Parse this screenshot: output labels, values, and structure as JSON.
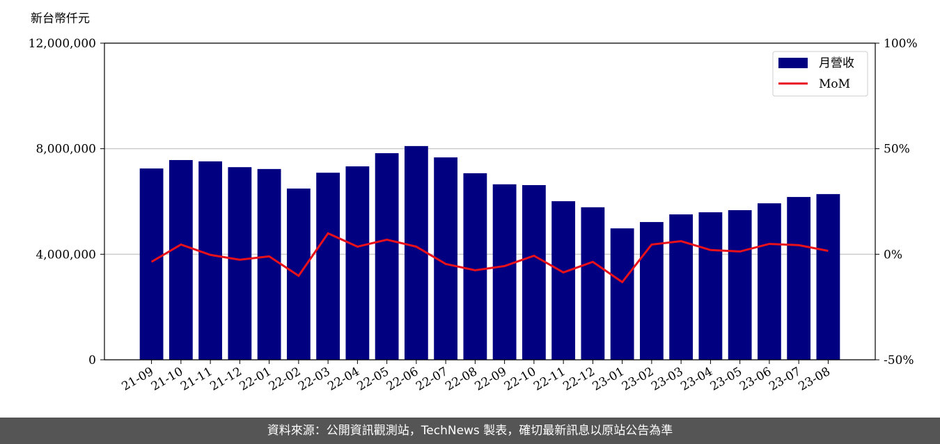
{
  "chart_data": {
    "type": "bar-line",
    "y_label": "新台幣仟元",
    "categories": [
      "21-09",
      "21-10",
      "21-11",
      "21-12",
      "22-01",
      "22-02",
      "22-03",
      "22-04",
      "22-05",
      "22-06",
      "22-07",
      "22-08",
      "22-09",
      "22-10",
      "22-11",
      "22-12",
      "23-01",
      "23-02",
      "23-03",
      "23-04",
      "23-05",
      "23-06",
      "23-07",
      "23-08"
    ],
    "series": [
      {
        "name": "月營收",
        "color": "#000080",
        "values": [
          7250000,
          7570000,
          7520000,
          7300000,
          7230000,
          6490000,
          7090000,
          7330000,
          7830000,
          8100000,
          7670000,
          7070000,
          6650000,
          6620000,
          6010000,
          5780000,
          4980000,
          5220000,
          5510000,
          5590000,
          5670000,
          5930000,
          6170000,
          6280000
        ]
      },
      {
        "name": "MoM",
        "color": "#e8101a",
        "axis": "y2",
        "values": [
          -3.6,
          4.6,
          -0.3,
          -2.6,
          -1.0,
          -10.2,
          9.9,
          3.6,
          6.9,
          3.6,
          -4.6,
          -7.6,
          -5.6,
          -0.7,
          -8.6,
          -3.6,
          -13.2,
          4.6,
          6.2,
          2.0,
          1.3,
          4.9,
          4.3,
          1.6
        ]
      }
    ],
    "ylim": [
      0,
      12000000
    ],
    "yticks": [
      0,
      {
        "value": 4000000,
        "label": "4,000,000"
      },
      {
        "value": 8000000,
        "label": "8,000,000"
      },
      {
        "value": 12000000,
        "label": "12,000,000"
      }
    ],
    "y2lim": [
      -50,
      100
    ],
    "y2ticks": [
      {
        "value": -50,
        "label": "-50%"
      },
      {
        "value": 0,
        "label": "0%"
      },
      {
        "value": 50,
        "label": "50%"
      },
      {
        "value": 100,
        "label": "100%"
      }
    ],
    "grid": true,
    "legend": "upper right",
    "footer": "資料來源：公開資訊觀測站，TechNews 製表，確切最新訊息以原站公告為準"
  }
}
